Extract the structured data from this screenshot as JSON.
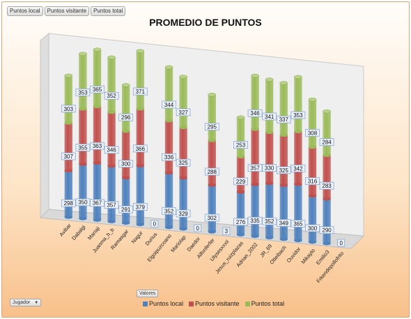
{
  "field_buttons": [
    "Puntos local",
    "Puntos visitante",
    "Puntos total"
  ],
  "values_button": "Valores",
  "axis_field_button": "Jugador",
  "dropdown_arrow": "▼",
  "colors": {
    "local": "#4f81bd",
    "visitante": "#c0504d",
    "total": "#9bbb59"
  },
  "chart_data": {
    "type": "bar",
    "stacked": true,
    "title": "PROMEDIO DE PUNTOS",
    "categories": [
      "Avibar",
      "Dabalgi",
      "Mariaji",
      "Juanma_h_b",
      "Ramasgar",
      "Nagur",
      "Durius",
      "Elgoipuzcoano",
      "Mariolap",
      "Daedor",
      "Alfonferfer",
      "Ulysesxxxii",
      "Jesus_ruizplazas",
      "Adrian_2002",
      "JR_69",
      "Otteibach",
      "Ouvidor",
      "Mikayto",
      "Emilio3",
      "Frkendepollofrito"
    ],
    "series": [
      {
        "name": "Puntos local",
        "values": [
          298,
          350,
          367,
          357,
          291,
          379,
          null,
          352,
          329,
          null,
          302,
          null,
          276,
          335,
          352,
          349,
          365,
          300,
          290,
          null
        ]
      },
      {
        "name": "Puntos visitante",
        "values": [
          307,
          355,
          363,
          346,
          300,
          366,
          null,
          336,
          325,
          null,
          288,
          null,
          229,
          357,
          330,
          325,
          342,
          316,
          283,
          null
        ]
      },
      {
        "name": "Puntos total",
        "values": [
          303,
          353,
          365,
          352,
          296,
          371,
          null,
          344,
          327,
          null,
          295,
          null,
          253,
          346,
          341,
          337,
          353,
          308,
          284,
          null
        ]
      }
    ],
    "zero_labels": [
      {
        "category": "Durius",
        "text": "0"
      },
      {
        "category": "Daedor",
        "text": "0"
      },
      {
        "category": "Ulysesxxxii",
        "text": "3"
      },
      {
        "category": "Frkendepollofrito",
        "text": "0"
      }
    ],
    "legend_position": "bottom",
    "view": "3d-column"
  }
}
